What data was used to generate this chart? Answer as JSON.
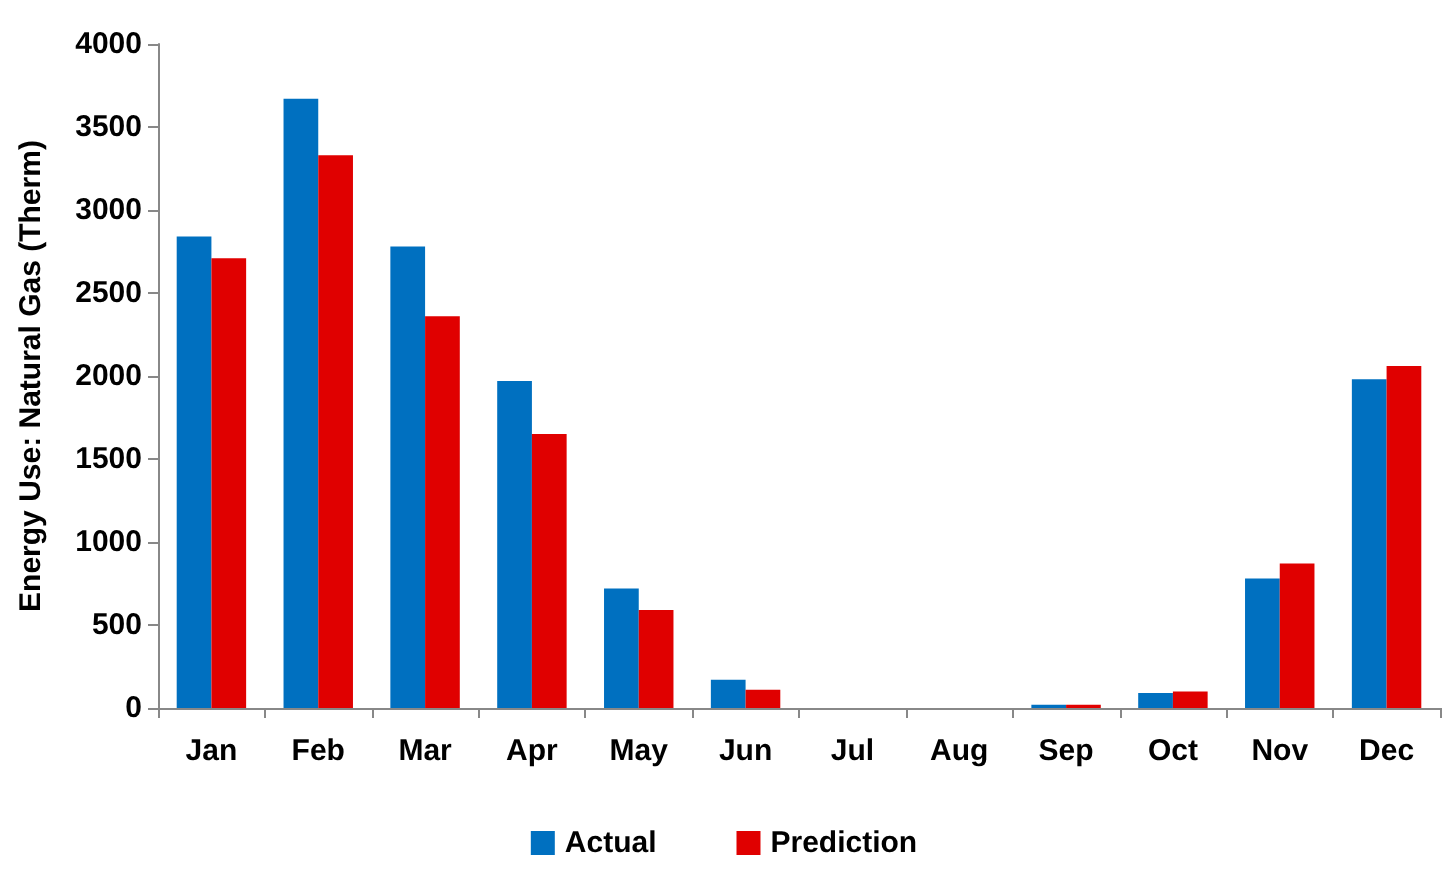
{
  "chart_data": {
    "type": "bar",
    "ylabel": "Energy Use: Natural Gas (Therm)",
    "categories": [
      "Jan",
      "Feb",
      "Mar",
      "Apr",
      "May",
      "Jun",
      "Jul",
      "Aug",
      "Sep",
      "Oct",
      "Nov",
      "Dec"
    ],
    "series": [
      {
        "name": "Actual",
        "color": "#0070c0",
        "values": [
          2840,
          3670,
          2780,
          1970,
          720,
          170,
          0,
          0,
          20,
          90,
          780,
          1980
        ]
      },
      {
        "name": "Prediction",
        "color": "#e00000",
        "values": [
          2710,
          3330,
          2360,
          1650,
          590,
          110,
          0,
          0,
          20,
          100,
          870,
          2060
        ]
      }
    ],
    "ylim": [
      0,
      4000
    ],
    "yticks": [
      0,
      500,
      1000,
      1500,
      2000,
      2500,
      3000,
      3500,
      4000
    ],
    "grid": false,
    "legend": "bottom"
  }
}
